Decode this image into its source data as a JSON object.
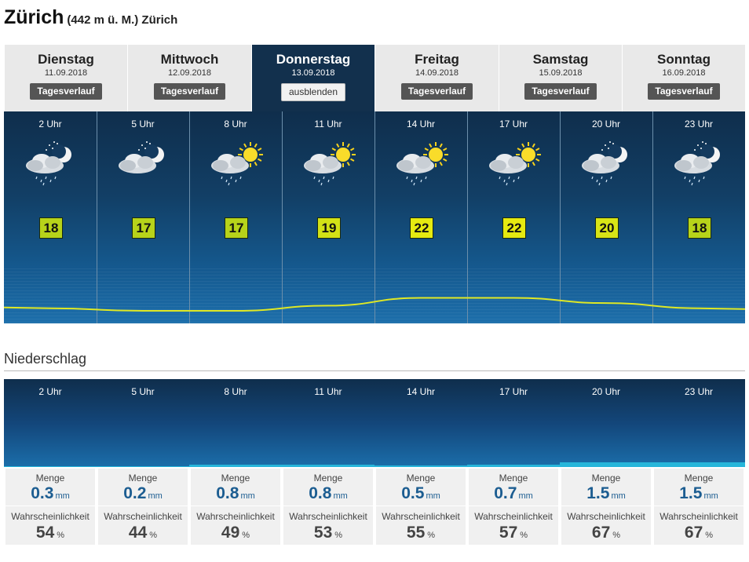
{
  "header": {
    "city": "Zürich",
    "subtitle": "(442 m ü. M.) Zürich"
  },
  "days": [
    {
      "name": "Dienstag",
      "date": "11.09.2018",
      "button": "Tagesverlauf",
      "active": false
    },
    {
      "name": "Mittwoch",
      "date": "12.09.2018",
      "button": "Tagesverlauf",
      "active": false
    },
    {
      "name": "Donnerstag",
      "date": "13.09.2018",
      "button": "ausblenden",
      "active": true
    },
    {
      "name": "Freitag",
      "date": "14.09.2018",
      "button": "Tagesverlauf",
      "active": false
    },
    {
      "name": "Samstag",
      "date": "15.09.2018",
      "button": "Tagesverlauf",
      "active": false
    },
    {
      "name": "Sonntag",
      "date": "16.09.2018",
      "button": "Tagesverlauf",
      "active": false
    }
  ],
  "hours": [
    {
      "label": "2 Uhr",
      "icon": "cloud-moon-rain-icon",
      "temp": "18",
      "temp_color": "#b7d31a"
    },
    {
      "label": "5 Uhr",
      "icon": "cloud-moon-icon",
      "temp": "17",
      "temp_color": "#b7d31a"
    },
    {
      "label": "8 Uhr",
      "icon": "cloud-sun-rain-icon",
      "temp": "17",
      "temp_color": "#b7d31a"
    },
    {
      "label": "11 Uhr",
      "icon": "cloud-sun-rain-icon",
      "temp": "19",
      "temp_color": "#d3e216"
    },
    {
      "label": "14 Uhr",
      "icon": "cloud-sun-rain-icon",
      "temp": "22",
      "temp_color": "#e6ea10"
    },
    {
      "label": "17 Uhr",
      "icon": "cloud-sun-rain-icon",
      "temp": "22",
      "temp_color": "#e6ea10"
    },
    {
      "label": "20 Uhr",
      "icon": "cloud-moon-rain-icon",
      "temp": "20",
      "temp_color": "#d8e416"
    },
    {
      "label": "23 Uhr",
      "icon": "cloud-moon-rain-icon",
      "temp": "18",
      "temp_color": "#b7d31a"
    }
  ],
  "precipitation": {
    "heading": "Niederschlag",
    "amount_label": "Menge",
    "amount_unit": "mm",
    "prob_label": "Wahrscheinlichkeit",
    "prob_unit": "%",
    "bar_color": "#27b6da",
    "entries": [
      {
        "label": "2 Uhr",
        "amount": "0.3",
        "probability": "54"
      },
      {
        "label": "5 Uhr",
        "amount": "0.2",
        "probability": "44"
      },
      {
        "label": "8 Uhr",
        "amount": "0.8",
        "probability": "49"
      },
      {
        "label": "11 Uhr",
        "amount": "0.8",
        "probability": "53"
      },
      {
        "label": "14 Uhr",
        "amount": "0.5",
        "probability": "55"
      },
      {
        "label": "17 Uhr",
        "amount": "0.7",
        "probability": "57"
      },
      {
        "label": "20 Uhr",
        "amount": "1.5",
        "probability": "67"
      },
      {
        "label": "23 Uhr",
        "amount": "1.5",
        "probability": "67"
      }
    ]
  }
}
